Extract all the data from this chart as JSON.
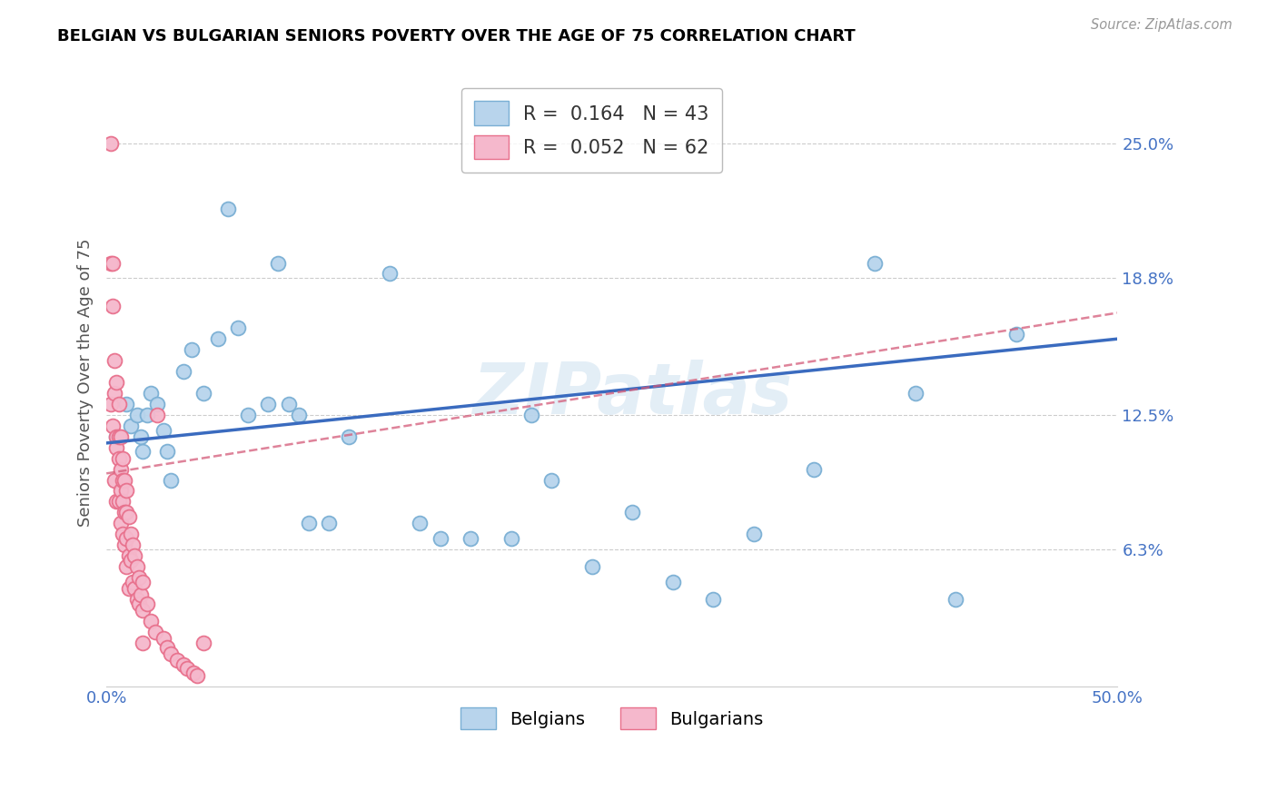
{
  "title": "BELGIAN VS BULGARIAN SENIORS POVERTY OVER THE AGE OF 75 CORRELATION CHART",
  "source": "Source: ZipAtlas.com",
  "ylabel": "Seniors Poverty Over the Age of 75",
  "xlim": [
    0.0,
    0.5
  ],
  "ylim": [
    0.0,
    0.28
  ],
  "ytick_positions": [
    0.063,
    0.125,
    0.188,
    0.25
  ],
  "ytick_labels": [
    "6.3%",
    "12.5%",
    "18.8%",
    "25.0%"
  ],
  "watermark": "ZIPatlas",
  "legend_r_belgian": "R =  0.164",
  "legend_n_belgian": "N = 43",
  "legend_r_bulgarian": "R =  0.052",
  "legend_n_bulgarian": "N = 62",
  "belgian_color": "#b8d4ec",
  "belgian_edge_color": "#7aafd4",
  "bulgarian_color": "#f5b8cc",
  "bulgarian_edge_color": "#e8708c",
  "trend_belgian_color": "#3a6bbf",
  "trend_bulgarian_color": "#d45a78",
  "belgians_x": [
    0.005,
    0.01,
    0.012,
    0.015,
    0.017,
    0.018,
    0.02,
    0.022,
    0.025,
    0.028,
    0.03,
    0.032,
    0.038,
    0.042,
    0.048,
    0.055,
    0.06,
    0.065,
    0.07,
    0.08,
    0.085,
    0.09,
    0.095,
    0.1,
    0.11,
    0.12,
    0.14,
    0.155,
    0.165,
    0.18,
    0.2,
    0.21,
    0.22,
    0.24,
    0.26,
    0.28,
    0.3,
    0.32,
    0.35,
    0.38,
    0.4,
    0.42,
    0.45
  ],
  "belgians_y": [
    0.115,
    0.13,
    0.12,
    0.125,
    0.115,
    0.108,
    0.125,
    0.135,
    0.13,
    0.118,
    0.108,
    0.095,
    0.145,
    0.155,
    0.135,
    0.16,
    0.22,
    0.165,
    0.125,
    0.13,
    0.195,
    0.13,
    0.125,
    0.075,
    0.075,
    0.115,
    0.19,
    0.075,
    0.068,
    0.068,
    0.068,
    0.125,
    0.095,
    0.055,
    0.08,
    0.048,
    0.04,
    0.07,
    0.1,
    0.195,
    0.135,
    0.04,
    0.162
  ],
  "bulgarians_x": [
    0.002,
    0.002,
    0.002,
    0.003,
    0.003,
    0.003,
    0.004,
    0.004,
    0.004,
    0.005,
    0.005,
    0.005,
    0.005,
    0.006,
    0.006,
    0.006,
    0.006,
    0.007,
    0.007,
    0.007,
    0.007,
    0.008,
    0.008,
    0.008,
    0.008,
    0.009,
    0.009,
    0.009,
    0.01,
    0.01,
    0.01,
    0.01,
    0.011,
    0.011,
    0.011,
    0.012,
    0.012,
    0.013,
    0.013,
    0.014,
    0.014,
    0.015,
    0.015,
    0.016,
    0.016,
    0.017,
    0.018,
    0.018,
    0.02,
    0.022,
    0.024,
    0.025,
    0.028,
    0.03,
    0.032,
    0.035,
    0.038,
    0.04,
    0.043,
    0.045,
    0.048,
    0.018
  ],
  "bulgarians_y": [
    0.25,
    0.195,
    0.13,
    0.195,
    0.175,
    0.12,
    0.15,
    0.135,
    0.095,
    0.14,
    0.115,
    0.11,
    0.085,
    0.13,
    0.115,
    0.105,
    0.085,
    0.115,
    0.1,
    0.09,
    0.075,
    0.105,
    0.095,
    0.085,
    0.07,
    0.095,
    0.08,
    0.065,
    0.09,
    0.08,
    0.068,
    0.055,
    0.078,
    0.06,
    0.045,
    0.07,
    0.058,
    0.065,
    0.048,
    0.06,
    0.045,
    0.055,
    0.04,
    0.05,
    0.038,
    0.042,
    0.048,
    0.035,
    0.038,
    0.03,
    0.025,
    0.125,
    0.022,
    0.018,
    0.015,
    0.012,
    0.01,
    0.008,
    0.006,
    0.005,
    0.02,
    0.02
  ]
}
